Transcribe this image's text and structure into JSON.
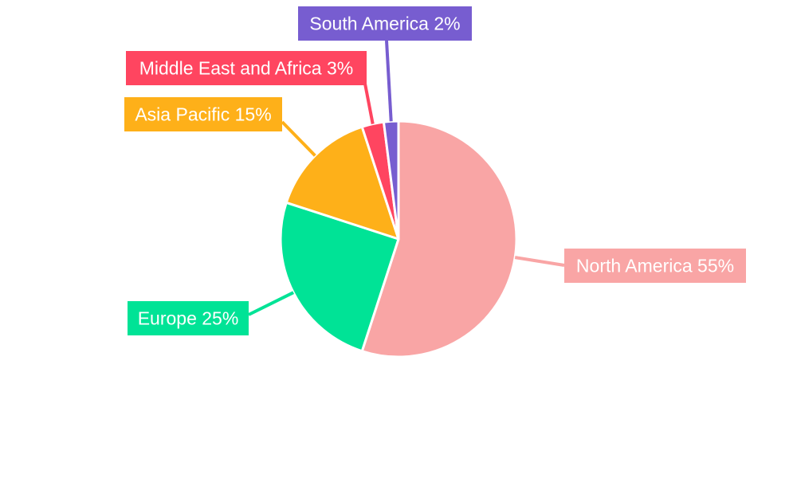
{
  "chart_data": {
    "type": "pie",
    "title": "",
    "categories": [
      "North America",
      "Europe",
      "Asia Pacific",
      "Middle East and Africa",
      "South America"
    ],
    "values": [
      55,
      25,
      15,
      3,
      2
    ],
    "labels": [
      "North America 55%",
      "Europe 25%",
      "Asia Pacific 15%",
      "Middle East and Africa 3%",
      "South America 2%"
    ],
    "colors": [
      "#F9A5A5",
      "#00E396",
      "#FEB019",
      "#FF4560",
      "#775DD0"
    ],
    "start_angle": "top",
    "direction": "clockwise",
    "legend": "none"
  }
}
